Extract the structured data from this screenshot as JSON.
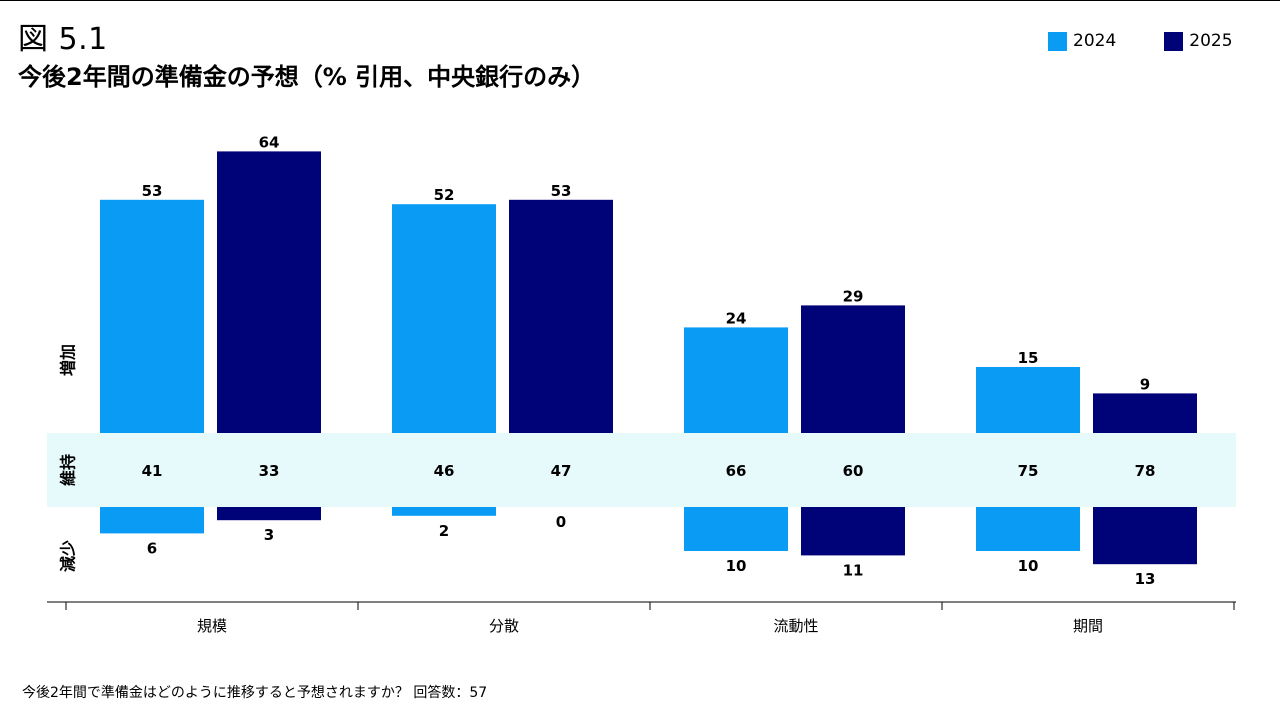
{
  "header": {
    "figure_label": "図 5.1",
    "title": "今後2年間の準備金の予想（% 引用、中央銀行のみ）"
  },
  "legend": [
    {
      "name": "2024",
      "color": "#0a9cf5"
    },
    {
      "name": "2025",
      "color": "#000278"
    }
  ],
  "footnote": "今後2年間で準備金はどのように推移すると予想されますか？ 回答数：57",
  "chart_data": {
    "type": "bar",
    "categories": [
      "規模",
      "分散",
      "流動性",
      "期間"
    ],
    "band_labels": {
      "increase": "増加",
      "maintain": "維持",
      "decrease": "減少"
    },
    "series": [
      {
        "name": "2024",
        "color": "#0a9cf5",
        "increase": [
          53,
          52,
          24,
          15
        ],
        "maintain": [
          41,
          46,
          66,
          75
        ],
        "decrease": [
          6,
          2,
          10,
          10
        ]
      },
      {
        "name": "2025",
        "color": "#000278",
        "increase": [
          64,
          53,
          29,
          9
        ],
        "maintain": [
          33,
          47,
          60,
          78
        ],
        "decrease": [
          3,
          0,
          11,
          13
        ]
      }
    ],
    "maintain_band_color": "#e6f9fb",
    "legend_position": "top-right"
  }
}
